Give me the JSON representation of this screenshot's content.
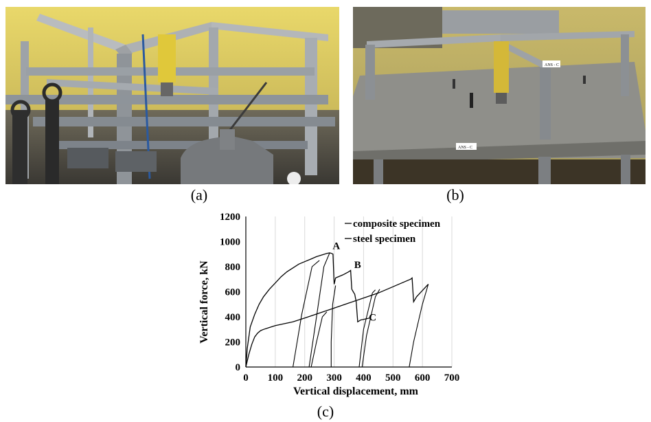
{
  "figure": {
    "captions": {
      "a": "(a)",
      "b": "(b)",
      "c": "(c)"
    },
    "photo_a": {
      "icon": "steel-frame-test-photo"
    },
    "photo_b": {
      "icon": "composite-slab-test-photo",
      "label_post": "ANS - C",
      "label_slab": "ANS - C"
    }
  },
  "chart_data": {
    "type": "line",
    "title": "",
    "xlabel": "Vertical displacement, mm",
    "ylabel": "Vertical force, kN",
    "xlim": [
      0,
      700
    ],
    "ylim": [
      0,
      1200
    ],
    "xticks": [
      0,
      100,
      200,
      300,
      400,
      500,
      600,
      700
    ],
    "yticks": [
      0,
      200,
      400,
      600,
      800,
      1000,
      1200
    ],
    "grid": "vertical",
    "legend_position": "top-right",
    "colors": {
      "line": "#000000",
      "grid": "#d9d9d9"
    },
    "series": [
      {
        "name": "composite specimen",
        "x": [
          0,
          5,
          15,
          30,
          45,
          60,
          80,
          100,
          120,
          140,
          160,
          180,
          200,
          220,
          240,
          260,
          275,
          285,
          292,
          296,
          300,
          305,
          330,
          350,
          356,
          360,
          365,
          370,
          375,
          380,
          390,
          400,
          410,
          420
        ],
        "y": [
          0,
          150,
          320,
          420,
          500,
          560,
          620,
          670,
          720,
          760,
          790,
          820,
          840,
          860,
          880,
          895,
          905,
          910,
          905,
          900,
          660,
          710,
          735,
          760,
          770,
          620,
          600,
          580,
          520,
          360,
          375,
          380,
          385,
          390
        ]
      },
      {
        "name": "steel specimen",
        "x": [
          0,
          10,
          20,
          30,
          40,
          50,
          60,
          80,
          100,
          130,
          160,
          200,
          250,
          300,
          350,
          400,
          450,
          500,
          530,
          560,
          565,
          570,
          580,
          600,
          620
        ],
        "y": [
          0,
          100,
          180,
          240,
          270,
          290,
          300,
          315,
          330,
          345,
          360,
          390,
          430,
          470,
          510,
          550,
          590,
          640,
          670,
          700,
          710,
          520,
          560,
          610,
          660
        ]
      }
    ],
    "unloading_reloading": [
      {
        "x": [
          160,
          190,
          225,
          250
        ],
        "y": [
          0,
          420,
          800,
          850
        ]
      },
      {
        "x": [
          215,
          240,
          265,
          285
        ],
        "y": [
          0,
          400,
          800,
          910
        ]
      },
      {
        "x": [
          222,
          240,
          260,
          275
        ],
        "y": [
          0,
          200,
          400,
          440
        ]
      },
      {
        "x": [
          290,
          290,
          295,
          305
        ],
        "y": [
          0,
          200,
          500,
          650
        ]
      },
      {
        "x": [
          385,
          400,
          430,
          440
        ],
        "y": [
          0,
          300,
          590,
          615
        ]
      },
      {
        "x": [
          395,
          410,
          440,
          455
        ],
        "y": [
          0,
          250,
          560,
          620
        ]
      },
      {
        "x": [
          555,
          570,
          600,
          620
        ],
        "y": [
          0,
          200,
          500,
          660
        ]
      }
    ],
    "annotations": [
      {
        "text": "A",
        "x": 295,
        "y": 940
      },
      {
        "text": "B",
        "x": 368,
        "y": 790
      },
      {
        "text": "C",
        "x": 418,
        "y": 370
      }
    ]
  }
}
